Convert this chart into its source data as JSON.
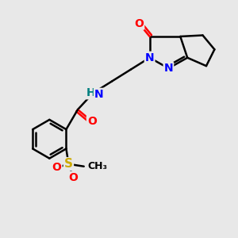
{
  "bg_color": "#e8e8e8",
  "bond_color": "#000000",
  "bond_width": 1.8,
  "atom_colors": {
    "O": "#ff0000",
    "N": "#0000ff",
    "S": "#ccaa00",
    "H": "#008080",
    "C": "#000000"
  },
  "font_size": 10,
  "figsize": [
    3.0,
    3.0
  ],
  "dpi": 100
}
